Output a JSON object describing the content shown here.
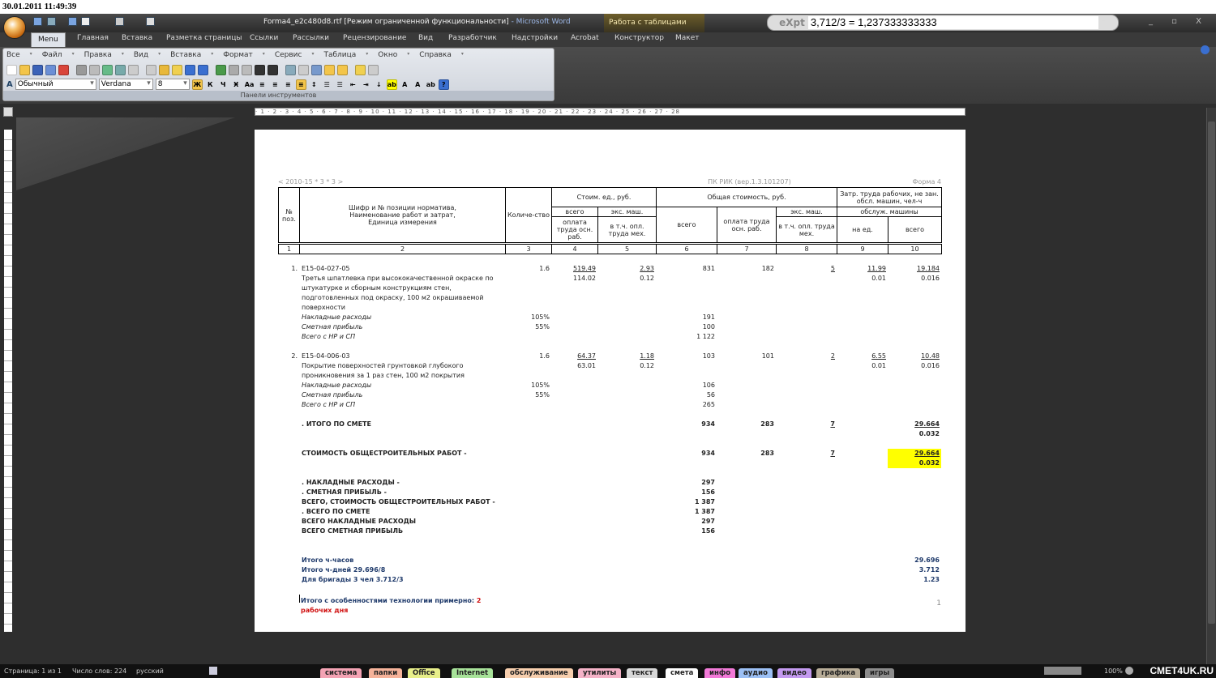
{
  "clock": "30.01.2011 11:49:39",
  "window": {
    "title": "Forma4_e2c480d8.rtf [Режим ограниченной функциональности]",
    "app": " - Microsoft Word",
    "context_tab": "Работа с таблицами"
  },
  "expt": {
    "label": "eXpt",
    "value": "3,712/3 = 1,237333333333"
  },
  "tabs": [
    "Menu",
    "Главная",
    "Вставка",
    "Разметка страницы",
    "Ссылки",
    "Рассылки",
    "Рецензирование",
    "Вид",
    "Разработчик",
    "Надстройки",
    "Acrobat",
    "Конструктор",
    "Макет"
  ],
  "menu": [
    "Все",
    "Файл",
    "Правка",
    "Вид",
    "Вставка",
    "Формат",
    "Сервис",
    "Таблица",
    "Окно",
    "Справка"
  ],
  "toolbar": {
    "style": "Обычный",
    "font": "Verdana",
    "size": "8",
    "caption": "Панели инструментов"
  },
  "doc": {
    "left_header": "< 2010-15 * 3 * 3 >",
    "mid_header": "ПК РИК (вер.1.3.101207)",
    "right_header": "Форма 4",
    "columns": {
      "pos": "№ поз.",
      "name": "Шифр и № позиции норматива, Наименование работ и затрат, Единица измерения",
      "qty": "Количе-ство",
      "unit_cost": "Стоим. ед., руб.",
      "total_cost": "Общая стоимость, руб.",
      "labor": "Затр. труда рабочих, не зан. обсл. машин, чел-ч",
      "all": "всего",
      "mach": "экс. маш.",
      "pay": "оплата труда осн. раб.",
      "incl": "в т.ч. опл. труда мех.",
      "all2": "всего",
      "pay2": "оплата труда осн. раб.",
      "mach2": "экс. маш.",
      "incl2": "в т.ч. опл. труда мех.",
      "serv": "обслуж. машины",
      "per": "на ед.",
      "all3": "всего",
      "nums": [
        "1",
        "2",
        "3",
        "4",
        "5",
        "6",
        "7",
        "8",
        "9",
        "10"
      ]
    },
    "items": [
      {
        "n": "1.",
        "code": "E15-04-027-05",
        "qty": "1.6",
        "c4": "519.49",
        "c5": "2.93",
        "c6": "831",
        "c7": "182",
        "c8": "5",
        "c9": "11.99",
        "c10": "19.184",
        "desc": [
          "Третья шпатлевка при высококачественной окраске по",
          "штукатурке и сборным конструкциям стен,",
          "подготовленных под окраску, 100 м2 окрашиваемой",
          "поверхности"
        ],
        "s4": "114.02",
        "s5": "0.12",
        "s9": "0.01",
        "s10": "0.016",
        "nr_label": "Накладные расходы",
        "nr_pct": "105%",
        "nr": "191",
        "sp_label": "Сметная прибыль",
        "sp_pct": "55%",
        "sp": "100",
        "tot_label": "Всего с НР и СП",
        "tot": "1 122"
      },
      {
        "n": "2.",
        "code": "E15-04-006-03",
        "qty": "1.6",
        "c4": "64.37",
        "c5": "1.18",
        "c6": "103",
        "c7": "101",
        "c8": "2",
        "c9": "6.55",
        "c10": "10.48",
        "desc": [
          "Покрытие поверхностей грунтовкой глубокого",
          "проникновения за 1 раз стен, 100 м2 покрытия"
        ],
        "s4": "63.01",
        "s5": "0.12",
        "s9": "0.01",
        "s10": "0.016",
        "nr_label": "Накладные расходы",
        "nr_pct": "105%",
        "nr": "106",
        "sp_label": "Сметная прибыль",
        "sp_pct": "55%",
        "sp": "56",
        "tot_label": "Всего с НР и СП",
        "tot": "265"
      }
    ],
    "totals": [
      {
        "label": ".     ИТОГО   ПО    СМЕТЕ",
        "c6": "934",
        "c7": "283",
        "c8": "7",
        "c10": "29.664",
        "c10b": "0.032"
      },
      {
        "label": "СТОИМОСТЬ ОБЩЕСТРОИТЕЛЬНЫХ РАБОТ -",
        "c6": "934",
        "c7": "283",
        "c8": "7",
        "c10": "29.664",
        "c10b": "0.032",
        "highlight": true
      }
    ],
    "summary": [
      {
        "label": ".     НАКЛАДНЫЕ РАСХОДЫ -",
        "v": "297"
      },
      {
        "label": ".     СМЕТНАЯ ПРИБЫЛЬ -",
        "v": "156"
      },
      {
        "label": "ВСЕГО, СТОИМОСТЬ ОБЩЕСТРОИТЕЛЬНЫХ РАБОТ -",
        "v": "1 387"
      },
      {
        "label": ". ВСЕГО   ПО    СМЕТЕ",
        "v": "1 387"
      },
      {
        "label": "ВСЕГО НАКЛАДНЫЕ РАСХОДЫ",
        "v": "297"
      },
      {
        "label": "ВСЕГО СМЕТНАЯ ПРИБЫЛЬ",
        "v": "156"
      }
    ],
    "hours": [
      {
        "label": "Итого ч-часов",
        "v": "29.696"
      },
      {
        "label": "Итого ч-дней   29.696/8",
        "v": "3.712"
      },
      {
        "label": "Для бригады 3 чел    3.712/3",
        "v": "1.23"
      }
    ],
    "note": "Итого с особенностями технологии примерно: ",
    "note_red1": "2",
    "note_red2": "рабочих дня",
    "page_number": "1"
  },
  "status": {
    "page": "Страница: 1 из 1",
    "words": "Число слов: 224",
    "lang": "русский",
    "zoom": "100%",
    "logo": "СМЕТ4UK.RU"
  },
  "categories": [
    {
      "label": "система",
      "color": "#f4a3b4"
    },
    {
      "label": "папки",
      "color": "#f6b39a"
    },
    {
      "label": "Office",
      "color": "#e8ef8a"
    },
    {
      "label": "Internet",
      "color": "#a8e39a"
    },
    {
      "label": "обслуживание",
      "color": "#f7cfae"
    },
    {
      "label": "утилиты",
      "color": "#f5b3c8"
    },
    {
      "label": "текст",
      "color": "#d8d8d8"
    },
    {
      "label": "смета",
      "color": "#ffffff"
    },
    {
      "label": "инфо",
      "color": "#f27ad8"
    },
    {
      "label": "аудио",
      "color": "#9cc0f5"
    },
    {
      "label": "видео",
      "color": "#c49af0"
    },
    {
      "label": "графика",
      "color": "#b8ad98"
    },
    {
      "label": "игры",
      "color": "#8c8c8c"
    }
  ]
}
